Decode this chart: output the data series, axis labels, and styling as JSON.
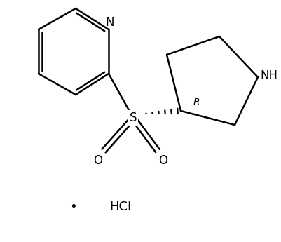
{
  "background_color": "#ffffff",
  "line_color": "#000000",
  "line_width": 1.8,
  "fig_width": 4.01,
  "fig_height": 3.45,
  "dpi": 100,
  "hcl_text": "HCl",
  "bullet_char": "•",
  "R_label": "R",
  "N_label": "N",
  "S_label": "S",
  "NH_label": "NH",
  "O_label": "O"
}
